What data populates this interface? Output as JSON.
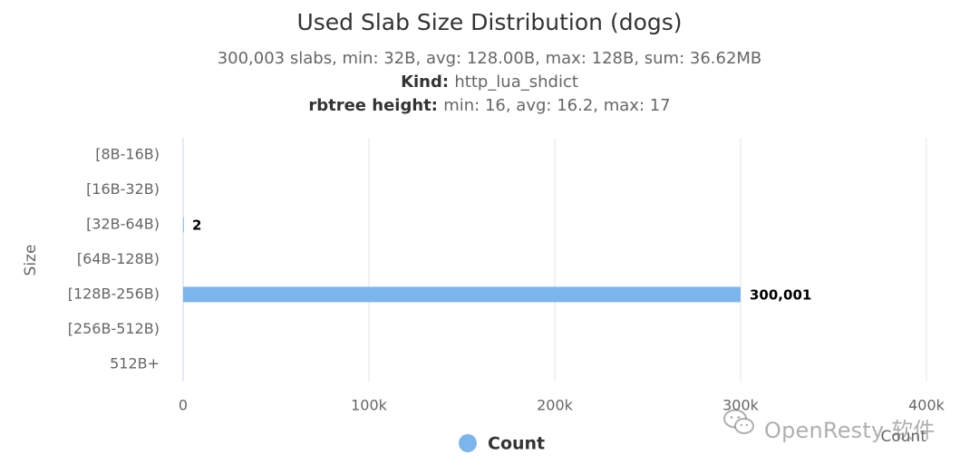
{
  "chart_data": {
    "type": "bar",
    "orientation": "horizontal",
    "title": "Used Slab Size Distribution (dogs)",
    "subtitle_lines": [
      {
        "label": "",
        "value": "300,003 slabs, min: 32B, avg: 128.00B, max: 128B, sum: 36.62MB"
      },
      {
        "label": "Kind:",
        "value": "http_lua_shdict"
      },
      {
        "label": "rbtree height:",
        "value": "min: 16, avg: 16.2, max: 17"
      }
    ],
    "categories": [
      "[8B-16B)",
      "[16B-32B)",
      "[32B-64B)",
      "[64B-128B)",
      "[128B-256B)",
      "[256B-512B)",
      "512B+"
    ],
    "series": [
      {
        "name": "Count",
        "values": [
          0,
          0,
          2,
          0,
          300001,
          0,
          0
        ],
        "data_labels": [
          null,
          null,
          "2",
          null,
          "300,001",
          null,
          null
        ]
      }
    ],
    "ylabel": "Size",
    "xlabel": "Count",
    "xlim": [
      0,
      400000
    ],
    "xticks": [
      0,
      100000,
      200000,
      300000,
      400000
    ],
    "xtick_labels": [
      "0",
      "100k",
      "200k",
      "300k",
      "400k"
    ],
    "grid": true,
    "legend_position": "bottom",
    "colors": {
      "bar": "#7cb5ec",
      "grid": "#e6e6e6",
      "title": "#333333",
      "subtitle": "#666666",
      "axis_label": "#666666",
      "data_label": "#000000"
    }
  },
  "watermark": {
    "icon": "wechat-icon",
    "text": "OpenResty 软件"
  }
}
